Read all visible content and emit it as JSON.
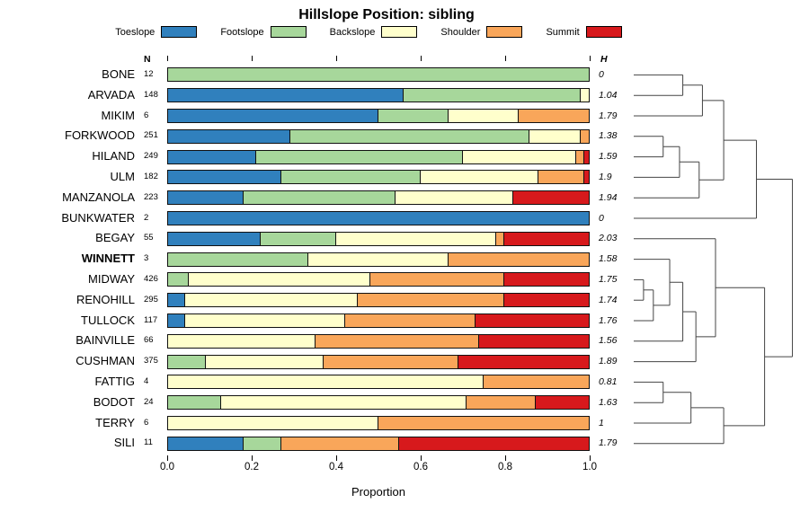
{
  "title": "Hillslope Position: sibling",
  "xlabel": "Proportion",
  "columns": {
    "n_header": "N",
    "h_header": "H"
  },
  "legend": [
    {
      "label": "Toeslope",
      "color": "#3080bd"
    },
    {
      "label": "Footslope",
      "color": "#a7d79b"
    },
    {
      "label": "Backslope",
      "color": "#ffffcc"
    },
    {
      "label": "Shoulder",
      "color": "#f9a65a"
    },
    {
      "label": "Summit",
      "color": "#d7191c"
    }
  ],
  "chart_data": {
    "type": "bar",
    "stacked": true,
    "orientation": "horizontal",
    "title": "Hillslope Position: sibling",
    "xlabel": "Proportion",
    "xlim": [
      0,
      1
    ],
    "xticks": [
      "0.0",
      "0.2",
      "0.4",
      "0.6",
      "0.8",
      "1.0"
    ],
    "series_legend": [
      "Toeslope",
      "Footslope",
      "Backslope",
      "Shoulder",
      "Summit"
    ],
    "rows": [
      {
        "name": "BONE",
        "n": 12,
        "h": "0",
        "props": [
          0,
          1,
          0,
          0,
          0
        ]
      },
      {
        "name": "ARVADA",
        "n": 148,
        "h": "1.04",
        "props": [
          0.56,
          0.42,
          0.02,
          0,
          0
        ]
      },
      {
        "name": "MIKIM",
        "n": 6,
        "h": "1.79",
        "props": [
          0.5,
          0.167,
          0.166,
          0.167,
          0
        ]
      },
      {
        "name": "FORKWOOD",
        "n": 251,
        "h": "1.38",
        "props": [
          0.29,
          0.57,
          0.12,
          0.02,
          0
        ]
      },
      {
        "name": "HILAND",
        "n": 249,
        "h": "1.59",
        "props": [
          0.21,
          0.49,
          0.27,
          0.02,
          0.01
        ]
      },
      {
        "name": "ULM",
        "n": 182,
        "h": "1.9",
        "props": [
          0.27,
          0.33,
          0.28,
          0.11,
          0.01
        ]
      },
      {
        "name": "MANZANOLA",
        "n": 223,
        "h": "1.94",
        "props": [
          0.18,
          0.36,
          0.28,
          0,
          0.18
        ]
      },
      {
        "name": "BUNKWATER",
        "n": 2,
        "h": "0",
        "props": [
          1,
          0,
          0,
          0,
          0
        ]
      },
      {
        "name": "BEGAY",
        "n": 55,
        "h": "2.03",
        "props": [
          0.22,
          0.18,
          0.38,
          0.02,
          0.2
        ]
      },
      {
        "name": "WINNETT",
        "n": 3,
        "h": "1.58",
        "bold": true,
        "props": [
          0,
          0.333,
          0.334,
          0.333,
          0
        ]
      },
      {
        "name": "MIDWAY",
        "n": 426,
        "h": "1.75",
        "props": [
          0,
          0.05,
          0.43,
          0.32,
          0.2
        ]
      },
      {
        "name": "RENOHILL",
        "n": 295,
        "h": "1.74",
        "props": [
          0.04,
          0,
          0.41,
          0.35,
          0.2
        ]
      },
      {
        "name": "TULLOCK",
        "n": 117,
        "h": "1.76",
        "props": [
          0.04,
          0,
          0.38,
          0.31,
          0.27
        ]
      },
      {
        "name": "BAINVILLE",
        "n": 66,
        "h": "1.56",
        "props": [
          0,
          0,
          0.35,
          0.39,
          0.26
        ]
      },
      {
        "name": "CUSHMAN",
        "n": 375,
        "h": "1.89",
        "props": [
          0,
          0.09,
          0.28,
          0.32,
          0.31
        ]
      },
      {
        "name": "FATTIG",
        "n": 4,
        "h": "0.81",
        "props": [
          0,
          0,
          0.75,
          0.25,
          0
        ]
      },
      {
        "name": "BODOT",
        "n": 24,
        "h": "1.63",
        "props": [
          0,
          0.125,
          0.585,
          0.165,
          0.125
        ]
      },
      {
        "name": "TERRY",
        "n": 6,
        "h": "1",
        "props": [
          0,
          0,
          0.5,
          0.5,
          0
        ]
      },
      {
        "name": "SILI",
        "n": 11,
        "h": "1.79",
        "props": [
          0.18,
          0.09,
          0,
          0.28,
          0.45
        ]
      }
    ],
    "dendrogram": {
      "h": 0.97,
      "c": [
        {
          "h": 0.75,
          "c": [
            {
              "h": 0.55,
              "c": [
                {
                  "h": 0.42,
                  "c": [
                    {
                      "h": 0.3,
                      "c": [
                        {
                          "leaf": 0
                        },
                        {
                          "leaf": 1
                        }
                      ]
                    },
                    {
                      "leaf": 2
                    }
                  ]
                },
                {
                  "h": 0.4,
                  "c": [
                    {
                      "h": 0.28,
                      "c": [
                        {
                          "h": 0.18,
                          "c": [
                            {
                              "leaf": 3
                            },
                            {
                              "leaf": 4
                            }
                          ]
                        },
                        {
                          "leaf": 5
                        }
                      ]
                    },
                    {
                      "leaf": 6
                    }
                  ]
                }
              ]
            },
            {
              "leaf": 7
            }
          ]
        },
        {
          "h": 0.8,
          "c": [
            {
              "h": 0.5,
              "c": [
                {
                  "leaf": 8
                },
                {
                  "h": 0.38,
                  "c": [
                    {
                      "h": 0.3,
                      "c": [
                        {
                          "h": 0.22,
                          "c": [
                            {
                              "leaf": 9
                            },
                            {
                              "h": 0.12,
                              "c": [
                                {
                                  "h": 0.06,
                                  "c": [
                                    {
                                      "leaf": 10
                                    },
                                    {
                                      "leaf": 11
                                    }
                                  ]
                                },
                                {
                                  "leaf": 12
                                }
                              ]
                            }
                          ]
                        },
                        {
                          "leaf": 13
                        }
                      ]
                    },
                    {
                      "leaf": 14
                    }
                  ]
                }
              ]
            },
            {
              "h": 0.55,
              "c": [
                {
                  "h": 0.35,
                  "c": [
                    {
                      "h": 0.18,
                      "c": [
                        {
                          "leaf": 15
                        },
                        {
                          "leaf": 16
                        }
                      ]
                    },
                    {
                      "leaf": 17
                    }
                  ]
                },
                {
                  "leaf": 18
                }
              ]
            }
          ]
        }
      ]
    }
  }
}
